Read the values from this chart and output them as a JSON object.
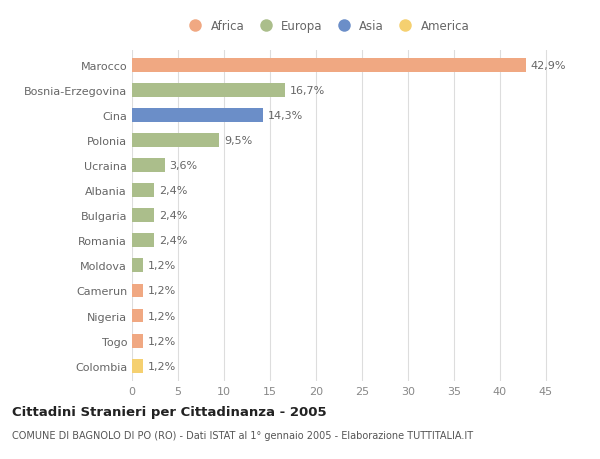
{
  "categories": [
    "Marocco",
    "Bosnia-Erzegovina",
    "Cina",
    "Polonia",
    "Ucraina",
    "Albania",
    "Bulgaria",
    "Romania",
    "Moldova",
    "Camerun",
    "Nigeria",
    "Togo",
    "Colombia"
  ],
  "values": [
    42.9,
    16.7,
    14.3,
    9.5,
    3.6,
    2.4,
    2.4,
    2.4,
    1.2,
    1.2,
    1.2,
    1.2,
    1.2
  ],
  "labels": [
    "42,9%",
    "16,7%",
    "14,3%",
    "9,5%",
    "3,6%",
    "2,4%",
    "2,4%",
    "2,4%",
    "1,2%",
    "1,2%",
    "1,2%",
    "1,2%",
    "1,2%"
  ],
  "continents": [
    "Africa",
    "Europa",
    "Asia",
    "Europa",
    "Europa",
    "Europa",
    "Europa",
    "Europa",
    "Europa",
    "Africa",
    "Africa",
    "Africa",
    "America"
  ],
  "continent_colors": {
    "Africa": "#F0A882",
    "Europa": "#ABBE8B",
    "Asia": "#6B8EC8",
    "America": "#F5D070"
  },
  "legend_order": [
    "Africa",
    "Europa",
    "Asia",
    "America"
  ],
  "xlim": [
    0,
    47
  ],
  "xticks": [
    0,
    5,
    10,
    15,
    20,
    25,
    30,
    35,
    40,
    45
  ],
  "title_line1": "Cittadini Stranieri per Cittadinanza - 2005",
  "title_line2": "COMUNE DI BAGNOLO DI PO (RO) - Dati ISTAT al 1° gennaio 2005 - Elaborazione TUTTITALIA.IT",
  "background_color": "#FFFFFF",
  "bar_height": 0.55,
  "grid_color": "#DDDDDD",
  "label_fontsize": 8,
  "tick_fontsize": 8,
  "title_fontsize": 9.5,
  "subtitle_fontsize": 7,
  "legend_fontsize": 8.5
}
